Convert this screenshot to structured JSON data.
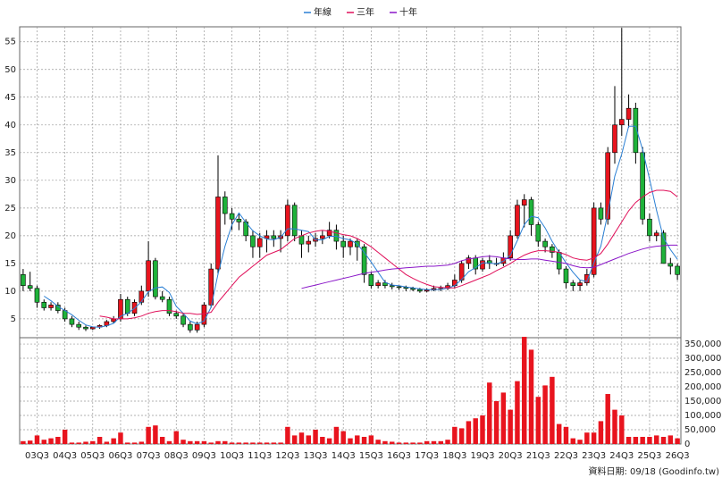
{
  "chart_data": [
    {
      "type": "candlestick",
      "categories": [
        null,
        null,
        "03Q3",
        null,
        null,
        null,
        "04Q3",
        null,
        null,
        null,
        "05Q3",
        null,
        null,
        null,
        "06Q3",
        null,
        null,
        null,
        "07Q3",
        null,
        null,
        null,
        "08Q3",
        null,
        null,
        null,
        "09Q3",
        null,
        null,
        null,
        "10Q3",
        null,
        null,
        null,
        "11Q3",
        null,
        null,
        null,
        "12Q3",
        null,
        null,
        null,
        "13Q3",
        null,
        null,
        null,
        "14Q3",
        null,
        null,
        null,
        "15Q3",
        null,
        null,
        null,
        "16Q3",
        null,
        null,
        null,
        "17Q3",
        null,
        null,
        null,
        "18Q3",
        null,
        null,
        null,
        "19Q3",
        null,
        null,
        null,
        "20Q3",
        null,
        null,
        null,
        "21Q3",
        null,
        null,
        null,
        "22Q3",
        null,
        null,
        null,
        "23Q3",
        null,
        null,
        null,
        "24Q3",
        null,
        null,
        null,
        "25Q3",
        null,
        null,
        null,
        "26Q3"
      ],
      "open": [
        13,
        11,
        10.5,
        8,
        7,
        7.5,
        6.5,
        5,
        4,
        3.5,
        3.2,
        3.5,
        3.8,
        4.5,
        5,
        8.5,
        6,
        8,
        10,
        15.5,
        9,
        8.5,
        6,
        5.5,
        4,
        3,
        4,
        7.5,
        14,
        27,
        24,
        23,
        22.5,
        20,
        18,
        19.5,
        20,
        19.5,
        20,
        25.5,
        20,
        18.5,
        19,
        19.5,
        20,
        21,
        19,
        18,
        19,
        18,
        13,
        11,
        11.5,
        11,
        10.8,
        10.7,
        10.5,
        10.3,
        10,
        10.2,
        10.5,
        10.5,
        11,
        12,
        15,
        16,
        14,
        15.5,
        15,
        15,
        16,
        20,
        25.5,
        26.5,
        22,
        19,
        18,
        17,
        14,
        11.5,
        11,
        11.5,
        13,
        25,
        23,
        35,
        40,
        41,
        43,
        35,
        23,
        20,
        20.5,
        15,
        14.5
      ],
      "high": [
        14,
        13.5,
        11,
        8.5,
        8,
        8,
        7,
        5.5,
        4.5,
        3.8,
        3.6,
        4,
        4.8,
        5.5,
        9.5,
        9,
        8.5,
        11,
        19,
        16,
        10,
        9,
        6.5,
        6,
        4.5,
        4.5,
        8,
        15,
        34.5,
        28,
        25,
        24,
        23,
        21,
        20.5,
        21,
        21,
        21,
        26.5,
        26,
        21,
        20,
        20.5,
        21,
        22.5,
        22,
        20,
        19.5,
        19.5,
        18.5,
        13.5,
        12,
        12,
        11.5,
        11,
        11,
        10.8,
        10.6,
        10.5,
        11,
        11,
        11.5,
        13,
        15.5,
        16.5,
        16.5,
        16,
        16.5,
        16,
        17,
        21,
        26.5,
        27.5,
        27,
        22.5,
        19.5,
        18.5,
        17.5,
        14.5,
        12,
        12,
        14,
        26,
        26,
        36,
        47,
        57.5,
        45.5,
        44,
        36,
        24,
        21,
        21,
        16,
        15
      ],
      "low": [
        10,
        10,
        7,
        6.5,
        6.5,
        6,
        4.5,
        3.5,
        3,
        2.8,
        3,
        3.2,
        3.5,
        4.2,
        4.5,
        5.5,
        5.5,
        7.5,
        9,
        8.5,
        8,
        5.5,
        5,
        3.5,
        2.5,
        2.5,
        3.5,
        7,
        13,
        22,
        21,
        21,
        19,
        16,
        16,
        17,
        18,
        17,
        19,
        19,
        16,
        17,
        18,
        18.5,
        19.5,
        17.5,
        16,
        16.5,
        15.5,
        11.5,
        10.5,
        10.5,
        10.5,
        10.3,
        10.2,
        10,
        10,
        9.7,
        9.8,
        10,
        10,
        10.2,
        10.5,
        11.5,
        14,
        13,
        13.5,
        14,
        14.5,
        14.5,
        15.5,
        19.5,
        21.5,
        20,
        18,
        17,
        16,
        13,
        10.5,
        10,
        10,
        11,
        12.5,
        22,
        22,
        33,
        38,
        39.5,
        33,
        22,
        19,
        19,
        15,
        13,
        12
      ],
      "close": [
        11,
        10.5,
        8,
        7,
        7.5,
        6.5,
        5,
        4,
        3.5,
        3.2,
        3.5,
        3.8,
        4.5,
        5,
        8.5,
        6,
        8,
        10,
        15.5,
        9,
        8.5,
        6,
        5.5,
        4,
        3,
        4,
        7.5,
        14,
        27,
        24,
        23,
        22.5,
        20,
        18,
        19.5,
        20,
        19.5,
        20,
        25.5,
        20,
        18.5,
        19,
        19.5,
        20,
        21,
        19,
        18,
        19,
        18,
        13,
        11,
        11.5,
        11,
        10.8,
        10.7,
        10.5,
        10.3,
        10,
        10.2,
        10.5,
        10.5,
        11,
        12,
        15,
        16,
        14,
        15.5,
        15,
        15,
        16,
        20,
        25.5,
        26.5,
        22,
        19,
        18,
        17,
        14,
        11.5,
        11,
        11.5,
        13,
        25,
        23,
        35,
        40,
        41,
        43,
        35,
        23,
        20,
        20.5,
        15,
        14.5,
        13
      ],
      "up_color": "#e8141e",
      "down_color": "#1fb23a",
      "series": [
        {
          "name": "年線",
          "color": "#2a7fd4",
          "values": [
            null,
            null,
            null,
            9.1,
            8.25,
            7.25,
            6.5,
            5.75,
            4.75,
            3.9,
            3.55,
            3.5,
            3.75,
            4.2,
            5.45,
            6,
            6.9,
            8.1,
            9.9,
            10.6,
            10.75,
            9.75,
            7.25,
            6,
            4.6,
            4.1,
            4.6,
            7.1,
            13.1,
            18.1,
            22,
            24.1,
            22.4,
            20.9,
            20,
            19.4,
            19.25,
            19.75,
            21.25,
            21.25,
            21,
            20.75,
            19.25,
            19.25,
            19.9,
            19.9,
            19.5,
            19.25,
            18.5,
            17,
            15.25,
            13.4,
            11.6,
            11.1,
            11,
            10.75,
            10.6,
            10.4,
            10.25,
            10.25,
            10.3,
            10.55,
            11,
            12.1,
            13.5,
            14.25,
            15.1,
            15.1,
            14.9,
            15.4,
            16.5,
            19.1,
            22,
            23.5,
            23.25,
            21.4,
            19,
            17,
            15.1,
            13.4,
            12,
            11.75,
            15.1,
            18.1,
            24,
            30.75,
            34.75,
            39.75,
            39.75,
            35.5,
            30.25,
            24.6,
            19.6,
            17.5,
            15.75
          ]
        },
        {
          "name": "三年",
          "color": "#e0105a",
          "values": [
            null,
            null,
            null,
            null,
            null,
            null,
            null,
            null,
            null,
            null,
            null,
            5.5,
            5.3,
            5,
            5,
            5,
            5.2,
            5.5,
            6,
            6.3,
            6.5,
            6.5,
            6.3,
            6,
            6,
            5.8,
            5.9,
            6.2,
            8,
            9.5,
            11,
            12.5,
            13.5,
            14.5,
            15.5,
            16.5,
            17,
            17.5,
            18.5,
            19.5,
            20,
            20.5,
            20.8,
            21,
            20.8,
            20.5,
            20.2,
            20,
            19.5,
            18.8,
            18,
            17,
            16,
            15,
            14,
            13,
            12.3,
            11.7,
            11.2,
            10.8,
            10.7,
            10.6,
            10.6,
            11,
            11.5,
            12,
            12.5,
            13,
            13.7,
            14.3,
            15,
            15.8,
            16.5,
            17,
            17.3,
            17.3,
            17.2,
            17,
            16.6,
            16,
            15.7,
            15.6,
            16,
            16.8,
            18.5,
            20.5,
            22.5,
            24.5,
            26,
            27,
            27.8,
            28.2,
            28.2,
            28,
            27
          ]
        },
        {
          "name": "十年",
          "color": "#8a16c8",
          "values": [
            null,
            null,
            null,
            null,
            null,
            null,
            null,
            null,
            null,
            null,
            null,
            null,
            null,
            null,
            null,
            null,
            null,
            null,
            null,
            null,
            null,
            null,
            null,
            null,
            null,
            null,
            null,
            null,
            null,
            null,
            null,
            null,
            null,
            null,
            null,
            null,
            null,
            null,
            null,
            null,
            10.5,
            10.8,
            11.1,
            11.4,
            11.7,
            12,
            12.3,
            12.6,
            12.9,
            13.2,
            13.4,
            13.6,
            13.8,
            14,
            14.1,
            14.2,
            14.3,
            14.4,
            14.5,
            14.5,
            14.6,
            14.7,
            15,
            15.5,
            15.8,
            16,
            16.2,
            16.3,
            16.2,
            16,
            15.8,
            15.7,
            15.7,
            15.8,
            15.8,
            15.6,
            15.4,
            15.2,
            15,
            14.6,
            14.3,
            14.2,
            14.3,
            14.8,
            15.3,
            15.8,
            16.3,
            16.8,
            17.2,
            17.6,
            17.9,
            18.1,
            18.2,
            18.3,
            18.3
          ]
        }
      ],
      "ylim": [
        1.6,
        57.7
      ],
      "yticks": [
        5,
        10,
        15,
        20,
        25,
        30,
        35,
        40,
        45,
        50,
        55
      ],
      "grid": true
    },
    {
      "type": "bar",
      "color": "#e8141e",
      "values": [
        10000,
        12000,
        30000,
        15000,
        20000,
        25000,
        50000,
        5000,
        5000,
        8000,
        10000,
        25000,
        8000,
        20000,
        40000,
        5000,
        5000,
        8000,
        60000,
        65000,
        25000,
        10000,
        45000,
        15000,
        10000,
        10000,
        10000,
        5000,
        10000,
        10000,
        5000,
        5000,
        5000,
        5000,
        5000,
        5000,
        5000,
        5000,
        60000,
        30000,
        40000,
        30000,
        50000,
        25000,
        20000,
        60000,
        45000,
        20000,
        30000,
        25000,
        30000,
        15000,
        10000,
        8000,
        5000,
        5000,
        5000,
        5000,
        10000,
        10000,
        10000,
        15000,
        60000,
        55000,
        80000,
        90000,
        100000,
        215000,
        150000,
        180000,
        120000,
        220000,
        375000,
        330000,
        165000,
        205000,
        235000,
        70000,
        60000,
        20000,
        15000,
        40000,
        40000,
        80000,
        175000,
        120000,
        100000,
        25000,
        25000,
        25000,
        25000,
        30000,
        25000,
        30000,
        20000
      ],
      "ylim": [
        0,
        372000
      ],
      "yticks": [
        0,
        {
          "value": 50000,
          "label": "50,000"
        },
        {
          "value": 100000,
          "label": "100,000"
        },
        {
          "value": 150000,
          "label": "150,000"
        },
        {
          "value": 200000,
          "label": "200,000"
        },
        {
          "value": 250000,
          "label": "250,000"
        },
        {
          "value": 300000,
          "label": "300,000"
        },
        {
          "value": 350000,
          "label": "350,000"
        }
      ],
      "grid": true
    }
  ],
  "footer": "資料日期: 09/18 (Goodinfo.tw)"
}
